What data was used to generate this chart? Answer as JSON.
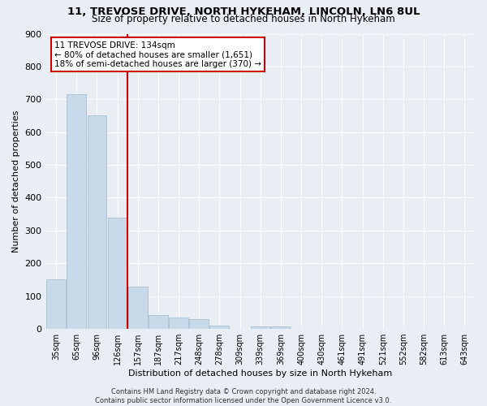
{
  "title": "11, TREVOSE DRIVE, NORTH HYKEHAM, LINCOLN, LN6 8UL",
  "subtitle": "Size of property relative to detached houses in North Hykeham",
  "xlabel": "Distribution of detached houses by size in North Hykeham",
  "ylabel": "Number of detached properties",
  "footnote": "Contains HM Land Registry data © Crown copyright and database right 2024.\nContains public sector information licensed under the Open Government Licence v3.0.",
  "categories": [
    "35sqm",
    "65sqm",
    "96sqm",
    "126sqm",
    "157sqm",
    "187sqm",
    "217sqm",
    "248sqm",
    "278sqm",
    "309sqm",
    "339sqm",
    "369sqm",
    "400sqm",
    "430sqm",
    "461sqm",
    "491sqm",
    "521sqm",
    "552sqm",
    "582sqm",
    "613sqm",
    "643sqm"
  ],
  "values": [
    150,
    715,
    650,
    340,
    130,
    42,
    35,
    30,
    10,
    0,
    8,
    8,
    0,
    0,
    0,
    0,
    0,
    0,
    0,
    0,
    0
  ],
  "bar_color": "#c8d9ea",
  "bar_edge_color": "#a0b8cc",
  "red_line_index": 3,
  "red_line_color": "#cc0000",
  "annotation_line1": "11 TREVOSE DRIVE: 134sqm",
  "annotation_line2": "← 80% of detached houses are smaller (1,651)",
  "annotation_line3": "18% of semi-detached houses are larger (370) →",
  "annotation_box_color": "#ffffff",
  "annotation_box_edge_color": "#cc0000",
  "ylim": [
    0,
    900
  ],
  "yticks": [
    0,
    100,
    200,
    300,
    400,
    500,
    600,
    700,
    800,
    900
  ],
  "background_color": "#e8eef4",
  "grid_color": "#ffffff",
  "title_fontsize": 9.5,
  "subtitle_fontsize": 8.5,
  "ylabel_fontsize": 8,
  "xlabel_fontsize": 8
}
